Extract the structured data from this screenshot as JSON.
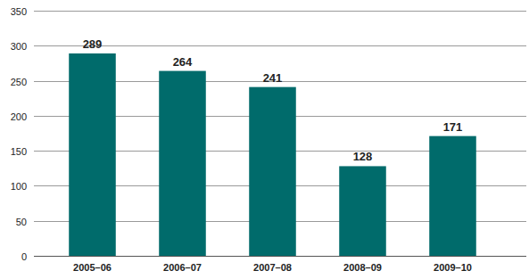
{
  "chart_data": {
    "type": "bar",
    "categories": [
      "2005–06",
      "2006–07",
      "2007–08",
      "2008–09",
      "2009–10"
    ],
    "values": [
      289,
      264,
      241,
      128,
      171
    ],
    "color": "#006b6b",
    "ylim": [
      0,
      350
    ],
    "yticks": [
      0,
      50,
      100,
      150,
      200,
      250,
      300,
      350
    ],
    "grid": true,
    "data_labels": true
  }
}
